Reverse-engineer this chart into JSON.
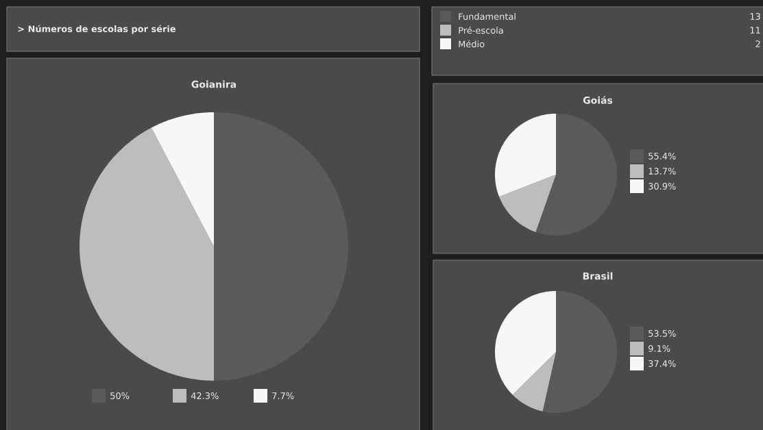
{
  "chart_data": [
    {
      "type": "other",
      "title": "> Números de escolas por série",
      "categories": [
        "Fundamental",
        "Pré-escola",
        "Médio"
      ],
      "values": [
        13,
        11,
        2
      ],
      "colors": [
        "#5a5a5a",
        "#bdbdbd",
        "#f7f7f7"
      ],
      "data_labels": true
    },
    {
      "type": "pie",
      "title": "Goianira",
      "categories": [
        "50%",
        "42.3%",
        "7.7%"
      ],
      "values": [
        50,
        42.3,
        7.7
      ],
      "colors": [
        "#5a5a5a",
        "#bdbdbd",
        "#f7f7f7"
      ],
      "legend": "bottom"
    },
    {
      "type": "pie",
      "title": "Goiás",
      "categories": [
        "55.4%",
        "13.7%",
        "30.9%"
      ],
      "values": [
        55.4,
        13.7,
        30.9
      ],
      "colors": [
        "#5a5a5a",
        "#bdbdbd",
        "#f7f7f7"
      ],
      "legend": "right"
    },
    {
      "type": "pie",
      "title": "Brasil",
      "categories": [
        "53.5%",
        "9.1%",
        "37.4%"
      ],
      "values": [
        53.5,
        9.1,
        37.4
      ],
      "colors": [
        "#5a5a5a",
        "#bdbdbd",
        "#f7f7f7"
      ],
      "legend": "right"
    }
  ]
}
